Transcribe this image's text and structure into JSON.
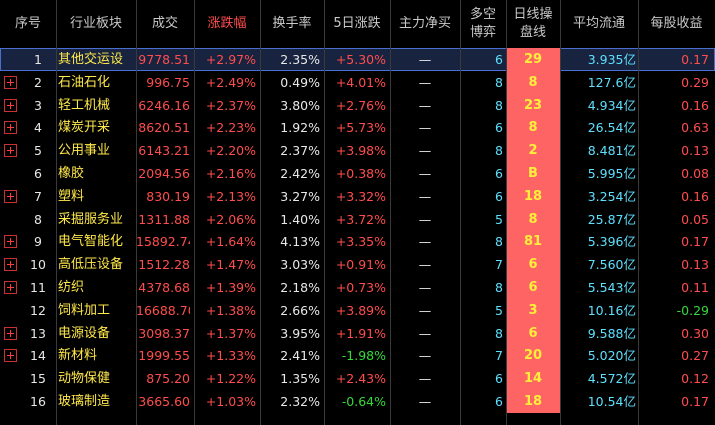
{
  "headers": {
    "idx": "序号",
    "sector": "行业板块",
    "volume": "成交",
    "change": "涨跌幅",
    "turnover": "换手率",
    "change5d": "5日涨跌",
    "netflow": "主力净买",
    "duokong_l1": "多空",
    "duokong_l2": "博弈",
    "rating_l1": "日线操",
    "rating_l2": "盘线",
    "avg_float": "平均流通",
    "eps": "每股收益"
  },
  "colors": {
    "rise": "#ff4d4d",
    "fall": "#35d93b",
    "name": "#ffe84a",
    "cyan": "#5ee0ff",
    "rating_bg": "#ff6464",
    "selected_bg": "#17233f"
  },
  "rows": [
    {
      "idx": "1",
      "name": "其他交运设",
      "volume": "9778.51",
      "change": "+2.97%",
      "turnover": "2.35%",
      "change5d": "+5.30%",
      "d5dir": "up",
      "net": "—",
      "duokong": "6",
      "rating": "29",
      "avg": "3.935亿",
      "eps": "0.17",
      "epsdir": "up",
      "plus": false,
      "selected": true
    },
    {
      "idx": "2",
      "name": "石油石化",
      "volume": "996.75",
      "change": "+2.49%",
      "turnover": "0.49%",
      "change5d": "+4.01%",
      "d5dir": "up",
      "net": "—",
      "duokong": "8",
      "rating": "8",
      "avg": "127.6亿",
      "eps": "0.29",
      "epsdir": "up",
      "plus": true,
      "selected": false
    },
    {
      "idx": "3",
      "name": "轻工机械",
      "volume": "6246.16",
      "change": "+2.37%",
      "turnover": "3.80%",
      "change5d": "+2.76%",
      "d5dir": "up",
      "net": "—",
      "duokong": "8",
      "rating": "23",
      "avg": "4.934亿",
      "eps": "0.16",
      "epsdir": "up",
      "plus": true,
      "selected": false
    },
    {
      "idx": "4",
      "name": "煤炭开采",
      "volume": "8620.51",
      "change": "+2.23%",
      "turnover": "1.92%",
      "change5d": "+5.73%",
      "d5dir": "up",
      "net": "—",
      "duokong": "6",
      "rating": "8",
      "avg": "26.54亿",
      "eps": "0.63",
      "epsdir": "up",
      "plus": true,
      "selected": false
    },
    {
      "idx": "5",
      "name": "公用事业",
      "volume": "6143.21",
      "change": "+2.20%",
      "turnover": "2.37%",
      "change5d": "+3.98%",
      "d5dir": "up",
      "net": "—",
      "duokong": "8",
      "rating": "2",
      "avg": "8.481亿",
      "eps": "0.13",
      "epsdir": "up",
      "plus": true,
      "selected": false
    },
    {
      "idx": "6",
      "name": "橡胶",
      "volume": "2094.56",
      "change": "+2.16%",
      "turnover": "2.42%",
      "change5d": "+0.38%",
      "d5dir": "up",
      "net": "—",
      "duokong": "6",
      "rating": "B",
      "avg": "5.995亿",
      "eps": "0.08",
      "epsdir": "up",
      "plus": false,
      "selected": false
    },
    {
      "idx": "7",
      "name": "塑料",
      "volume": "830.19",
      "change": "+2.13%",
      "turnover": "3.27%",
      "change5d": "+3.32%",
      "d5dir": "up",
      "net": "—",
      "duokong": "6",
      "rating": "18",
      "avg": "3.254亿",
      "eps": "0.16",
      "epsdir": "up",
      "plus": true,
      "selected": false
    },
    {
      "idx": "8",
      "name": "采掘服务业",
      "volume": "1311.88",
      "change": "+2.06%",
      "turnover": "1.40%",
      "change5d": "+3.72%",
      "d5dir": "up",
      "net": "—",
      "duokong": "5",
      "rating": "8",
      "avg": "25.87亿",
      "eps": "0.05",
      "epsdir": "up",
      "plus": false,
      "selected": false
    },
    {
      "idx": "9",
      "name": "电气智能化",
      "volume": "15892.74",
      "change": "+1.64%",
      "turnover": "4.13%",
      "change5d": "+3.35%",
      "d5dir": "up",
      "net": "—",
      "duokong": "8",
      "rating": "81",
      "avg": "5.396亿",
      "eps": "0.17",
      "epsdir": "up",
      "plus": true,
      "selected": false
    },
    {
      "idx": "10",
      "name": "高低压设备",
      "volume": "1512.28",
      "change": "+1.47%",
      "turnover": "3.03%",
      "change5d": "+0.91%",
      "d5dir": "up",
      "net": "—",
      "duokong": "7",
      "rating": "6",
      "avg": "7.560亿",
      "eps": "0.13",
      "epsdir": "up",
      "plus": true,
      "selected": false
    },
    {
      "idx": "11",
      "name": "纺织",
      "volume": "4378.68",
      "change": "+1.39%",
      "turnover": "2.18%",
      "change5d": "+0.73%",
      "d5dir": "up",
      "net": "—",
      "duokong": "8",
      "rating": "6",
      "avg": "5.543亿",
      "eps": "0.11",
      "epsdir": "up",
      "plus": true,
      "selected": false
    },
    {
      "idx": "12",
      "name": "饲料加工",
      "volume": "16688.70",
      "change": "+1.38%",
      "turnover": "2.66%",
      "change5d": "+3.89%",
      "d5dir": "up",
      "net": "—",
      "duokong": "5",
      "rating": "3",
      "avg": "10.16亿",
      "eps": "-0.29",
      "epsdir": "dn",
      "plus": false,
      "selected": false
    },
    {
      "idx": "13",
      "name": "电源设备",
      "volume": "3098.37",
      "change": "+1.37%",
      "turnover": "3.95%",
      "change5d": "+1.91%",
      "d5dir": "up",
      "net": "—",
      "duokong": "8",
      "rating": "6",
      "avg": "9.588亿",
      "eps": "0.30",
      "epsdir": "up",
      "plus": true,
      "selected": false
    },
    {
      "idx": "14",
      "name": "新材料",
      "volume": "1999.55",
      "change": "+1.33%",
      "turnover": "2.41%",
      "change5d": "-1.98%",
      "d5dir": "dn",
      "net": "—",
      "duokong": "7",
      "rating": "20",
      "avg": "5.020亿",
      "eps": "0.27",
      "epsdir": "up",
      "plus": true,
      "selected": false
    },
    {
      "idx": "15",
      "name": "动物保健",
      "volume": "875.20",
      "change": "+1.22%",
      "turnover": "1.35%",
      "change5d": "+2.43%",
      "d5dir": "up",
      "net": "—",
      "duokong": "6",
      "rating": "14",
      "avg": "4.572亿",
      "eps": "0.12",
      "epsdir": "up",
      "plus": false,
      "selected": false
    },
    {
      "idx": "16",
      "name": "玻璃制造",
      "volume": "3665.60",
      "change": "+1.03%",
      "turnover": "2.32%",
      "change5d": "-0.64%",
      "d5dir": "dn",
      "net": "—",
      "duokong": "6",
      "rating": "18",
      "avg": "10.54亿",
      "eps": "0.17",
      "epsdir": "up",
      "plus": false,
      "selected": false
    }
  ]
}
